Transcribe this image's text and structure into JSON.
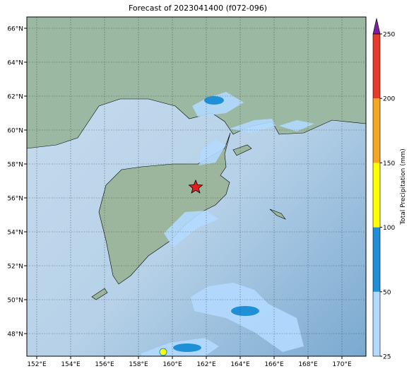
{
  "title": "Forecast of 2023041400 (f072-096)",
  "map": {
    "lat_labels": [
      "66°N",
      "64°N",
      "62°N",
      "60°N",
      "58°N",
      "56°N",
      "54°N",
      "52°N",
      "50°N",
      "48°N"
    ],
    "lon_labels": [
      "152°E",
      "154°E",
      "156°E",
      "158°E",
      "160°E",
      "162°E",
      "164°E",
      "166°E",
      "168°E",
      "170°E"
    ]
  },
  "colorbar": {
    "label": "Total Precipitation (mm)",
    "ticks": [
      25,
      50,
      100,
      150,
      200,
      250
    ],
    "colors": [
      "#b3d9ff",
      "#1f8fd8",
      "#ffff00",
      "#f5a623",
      "#e63a2a"
    ],
    "extend_color": "#7b1fa2"
  }
}
